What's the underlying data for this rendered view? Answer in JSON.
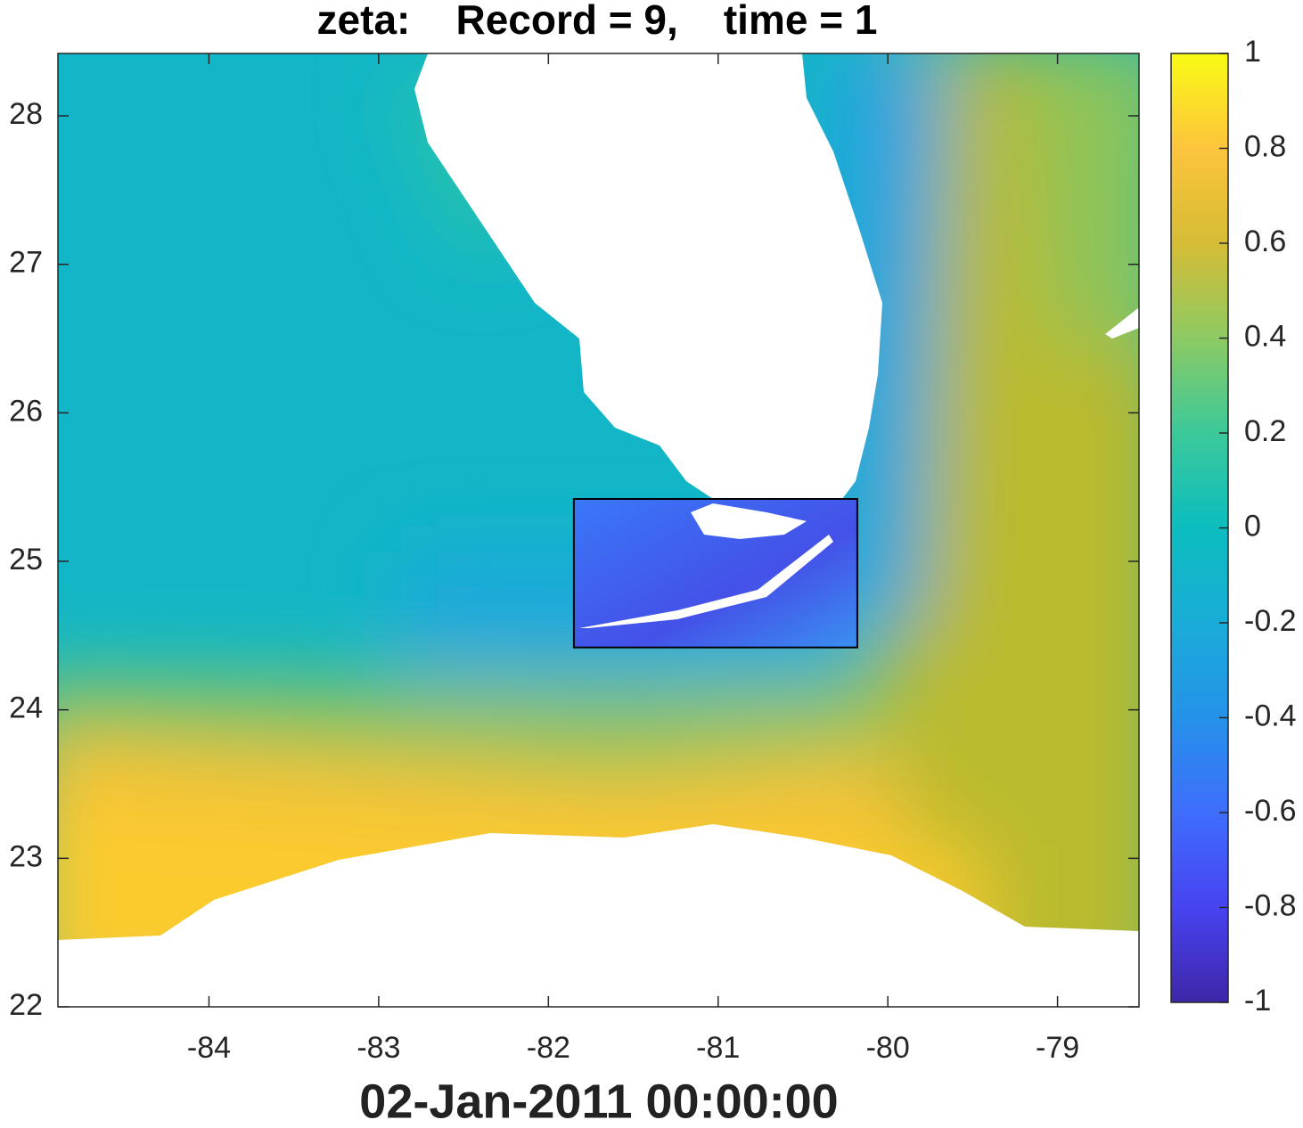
{
  "chart_data": {
    "type": "map",
    "title": "zeta:    Record = 9,    time = 1",
    "xlabel": "02-Jan-2011 00:00:00",
    "xlim": [
      -84.89,
      -78.52
    ],
    "xticks": [
      -84,
      -83,
      -82,
      -81,
      -80,
      -79
    ],
    "ylim": [
      22,
      28.42
    ],
    "yticks": [
      22,
      23,
      24,
      25,
      26,
      27,
      28
    ],
    "box": {
      "xlim": [
        -81.85,
        -80.18
      ],
      "ylim": [
        24.42,
        25.42
      ],
      "color": "#000000"
    },
    "colorbar": {
      "clim": [
        -1,
        1
      ],
      "ticks": [
        -1,
        -0.8,
        -0.6,
        -0.4,
        -0.2,
        0,
        0.2,
        0.4,
        0.6,
        0.8,
        1
      ],
      "colormap": [
        "#3e26a8",
        "#4743f1",
        "#3f6dfd",
        "#2592e9",
        "#1aacd8",
        "#0bbdbe",
        "#3cc99a",
        "#8dca63",
        "#d6bc35",
        "#fdc43c",
        "#f9fb15"
      ]
    }
  }
}
